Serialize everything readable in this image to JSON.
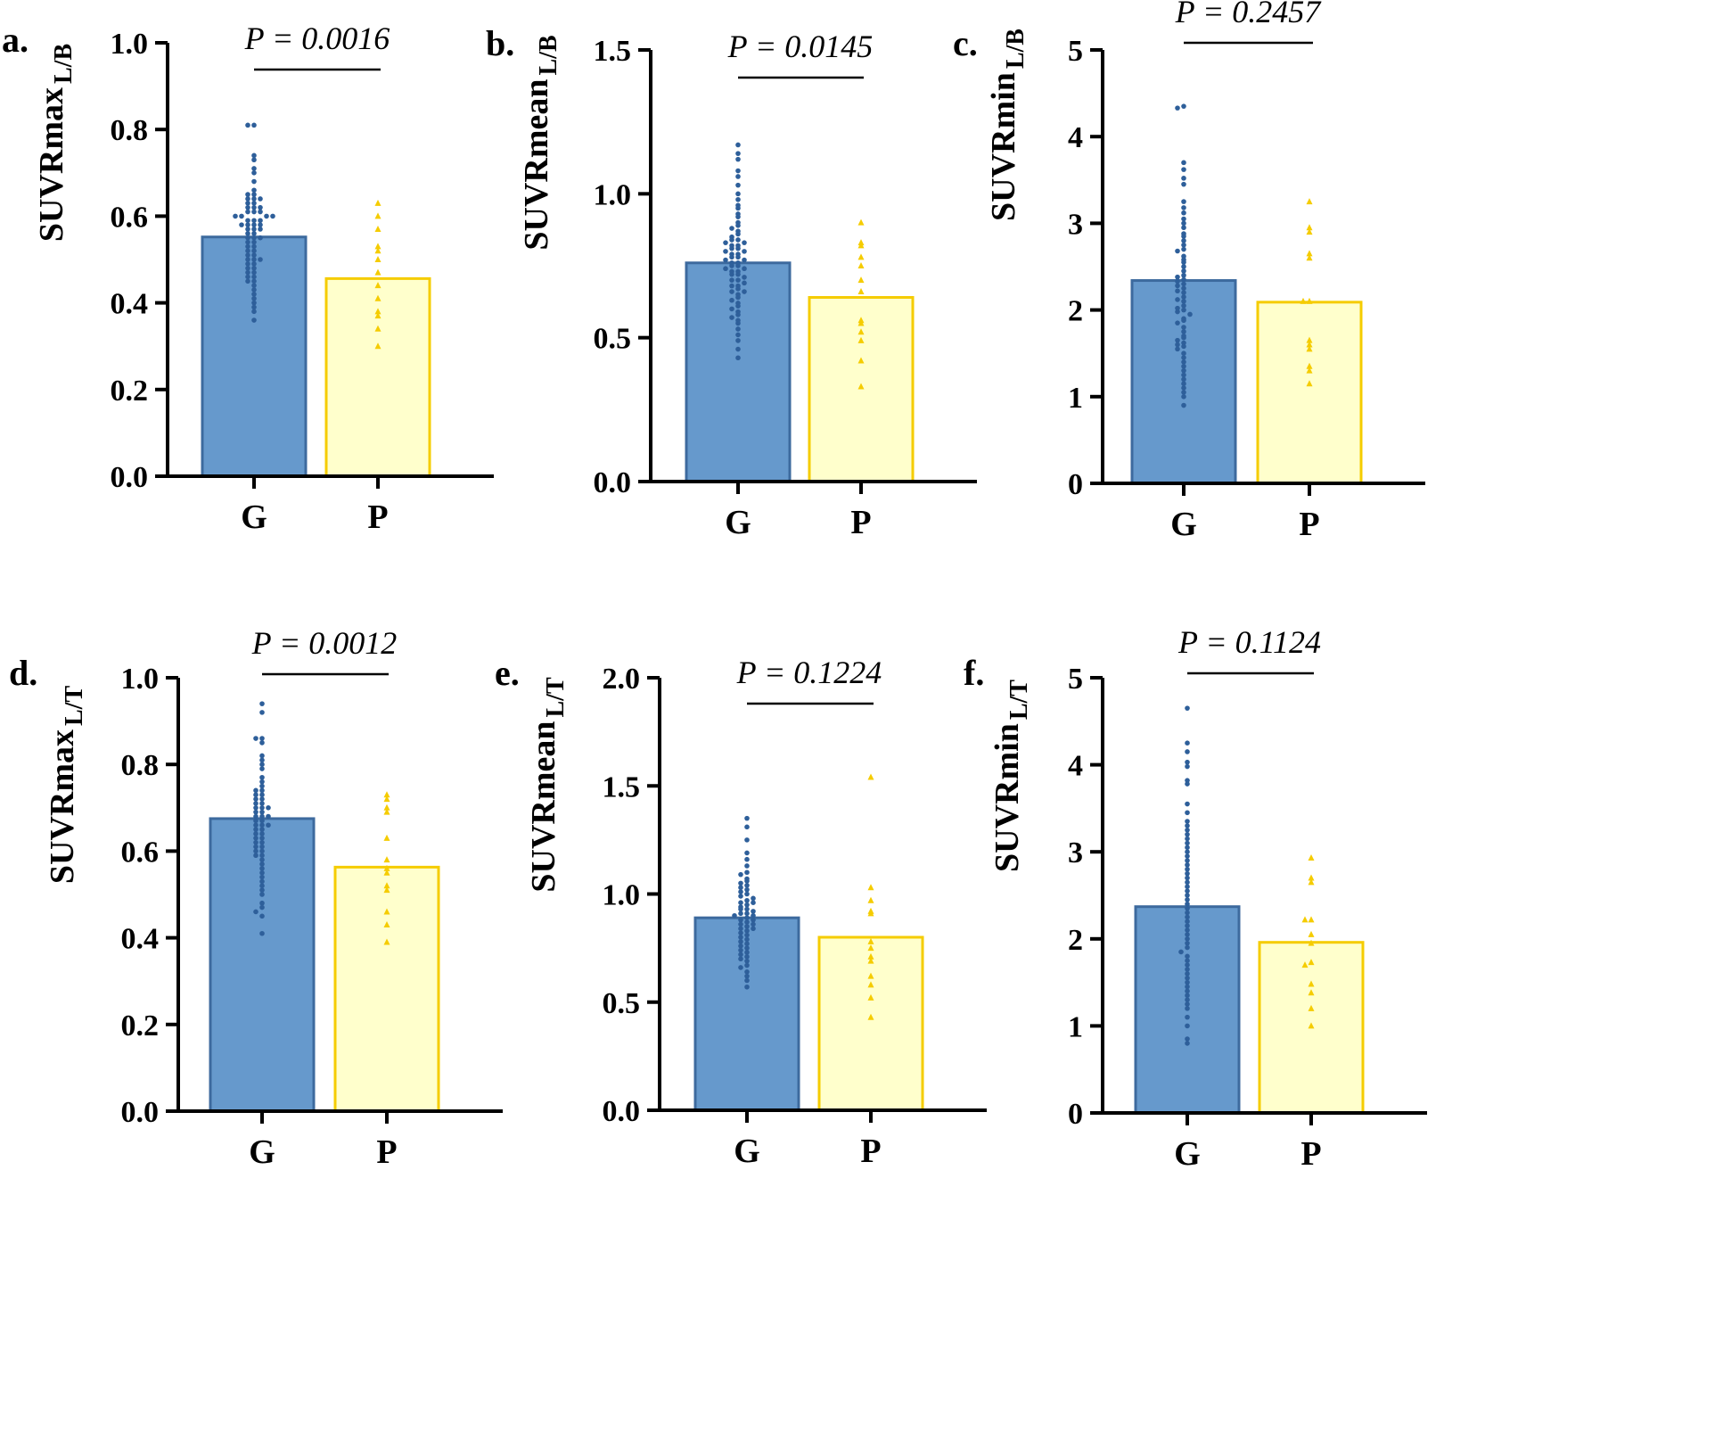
{
  "figure": {
    "colors": {
      "G_fill": "#6699cc",
      "G_stroke": "#3d6a9e",
      "G_point": "#2e5f9a",
      "P_fill": "#ffffcc",
      "P_stroke": "#f5cc00",
      "P_point": "#f5cc00",
      "axis": "#000000"
    }
  },
  "chart_data": [
    {
      "type": "bar",
      "panel_label": "a.",
      "ylabel": "SUVRmax",
      "ylabel_sub": "L/B",
      "categories": [
        "G",
        "P"
      ],
      "values": [
        0.552,
        0.456
      ],
      "ylim": [
        0,
        1.0
      ],
      "yticks": [
        0.0,
        0.2,
        0.4,
        0.6,
        0.8,
        1.0
      ],
      "ytick_labels": [
        "0.0",
        "0.2",
        "0.4",
        "0.6",
        "0.8",
        "1.0"
      ],
      "p_value": "P = 0.0016",
      "points": {
        "G": [
          0.81,
          0.81,
          0.74,
          0.73,
          0.71,
          0.7,
          0.68,
          0.66,
          0.65,
          0.65,
          0.64,
          0.64,
          0.64,
          0.63,
          0.63,
          0.62,
          0.62,
          0.62,
          0.61,
          0.61,
          0.61,
          0.6,
          0.6,
          0.6,
          0.6,
          0.59,
          0.59,
          0.59,
          0.58,
          0.58,
          0.58,
          0.58,
          0.57,
          0.57,
          0.57,
          0.56,
          0.56,
          0.55,
          0.55,
          0.55,
          0.54,
          0.54,
          0.53,
          0.53,
          0.52,
          0.52,
          0.51,
          0.51,
          0.5,
          0.5,
          0.5,
          0.49,
          0.49,
          0.48,
          0.48,
          0.47,
          0.47,
          0.46,
          0.46,
          0.45,
          0.45,
          0.44,
          0.43,
          0.42,
          0.41,
          0.4,
          0.39,
          0.38,
          0.36
        ],
        "P": [
          0.63,
          0.6,
          0.57,
          0.53,
          0.52,
          0.5,
          0.47,
          0.44,
          0.41,
          0.38,
          0.37,
          0.34,
          0.3
        ]
      }
    },
    {
      "type": "bar",
      "panel_label": "b.",
      "ylabel": "SUVRmean",
      "ylabel_sub": "L/B",
      "categories": [
        "G",
        "P"
      ],
      "values": [
        0.76,
        0.64
      ],
      "ylim": [
        0,
        1.5
      ],
      "yticks": [
        0.0,
        0.5,
        1.0,
        1.5
      ],
      "ytick_labels": [
        "0.0",
        "0.5",
        "1.0",
        "1.5"
      ],
      "p_value": "P = 0.0145",
      "points": {
        "G": [
          1.17,
          1.14,
          1.12,
          1.08,
          1.06,
          1.03,
          1.0,
          0.98,
          0.96,
          0.95,
          0.93,
          0.92,
          0.9,
          0.89,
          0.88,
          0.87,
          0.86,
          0.85,
          0.84,
          0.84,
          0.83,
          0.83,
          0.82,
          0.82,
          0.81,
          0.81,
          0.8,
          0.8,
          0.79,
          0.79,
          0.78,
          0.78,
          0.77,
          0.77,
          0.76,
          0.76,
          0.75,
          0.75,
          0.74,
          0.74,
          0.73,
          0.73,
          0.72,
          0.72,
          0.71,
          0.7,
          0.7,
          0.69,
          0.68,
          0.68,
          0.67,
          0.66,
          0.66,
          0.65,
          0.64,
          0.63,
          0.62,
          0.61,
          0.6,
          0.59,
          0.58,
          0.57,
          0.56,
          0.55,
          0.53,
          0.51,
          0.49,
          0.46,
          0.43
        ],
        "P": [
          0.9,
          0.83,
          0.82,
          0.78,
          0.75,
          0.7,
          0.66,
          0.56,
          0.55,
          0.52,
          0.49,
          0.42,
          0.33
        ]
      }
    },
    {
      "type": "bar",
      "panel_label": "c.",
      "ylabel": "SUVRmin",
      "ylabel_sub": "L/B",
      "categories": [
        "G",
        "P"
      ],
      "values": [
        2.34,
        2.09
      ],
      "ylim": [
        0,
        5
      ],
      "yticks": [
        0,
        1,
        2,
        3,
        4,
        5
      ],
      "ytick_labels": [
        "0",
        "1",
        "2",
        "3",
        "4",
        "5"
      ],
      "p_value": "P = 0.2457",
      "points": {
        "G": [
          4.35,
          4.33,
          3.7,
          3.62,
          3.52,
          3.45,
          3.25,
          3.18,
          3.12,
          3.05,
          3.0,
          2.95,
          2.88,
          2.85,
          2.8,
          2.75,
          2.7,
          2.68,
          2.62,
          2.58,
          2.55,
          2.5,
          2.45,
          2.4,
          2.38,
          2.35,
          2.33,
          2.3,
          2.28,
          2.25,
          2.22,
          2.2,
          2.15,
          2.12,
          2.1,
          2.05,
          2.02,
          2.0,
          1.98,
          1.95,
          1.9,
          1.88,
          1.85,
          1.8,
          1.75,
          1.7,
          1.68,
          1.65,
          1.62,
          1.6,
          1.58,
          1.55,
          1.5,
          1.45,
          1.4,
          1.35,
          1.3,
          1.25,
          1.2,
          1.15,
          1.1,
          1.05,
          1.0,
          0.9
        ],
        "P": [
          3.25,
          2.95,
          2.9,
          2.65,
          2.6,
          2.1,
          2.1,
          1.65,
          1.6,
          1.55,
          1.35,
          1.3,
          1.15
        ]
      }
    },
    {
      "type": "bar",
      "panel_label": "d.",
      "ylabel": "SUVRmax",
      "ylabel_sub": "L/T",
      "categories": [
        "G",
        "P"
      ],
      "values": [
        0.675,
        0.563
      ],
      "ylim": [
        0,
        1.0
      ],
      "yticks": [
        0.0,
        0.2,
        0.4,
        0.6,
        0.8,
        1.0
      ],
      "ytick_labels": [
        "0.0",
        "0.2",
        "0.4",
        "0.6",
        "0.8",
        "1.0"
      ],
      "p_value": "P = 0.0012",
      "points": {
        "G": [
          0.94,
          0.92,
          0.86,
          0.86,
          0.85,
          0.82,
          0.81,
          0.8,
          0.79,
          0.77,
          0.76,
          0.75,
          0.74,
          0.74,
          0.73,
          0.73,
          0.72,
          0.72,
          0.71,
          0.71,
          0.7,
          0.7,
          0.7,
          0.69,
          0.69,
          0.68,
          0.68,
          0.68,
          0.67,
          0.67,
          0.66,
          0.66,
          0.66,
          0.65,
          0.65,
          0.64,
          0.64,
          0.63,
          0.63,
          0.62,
          0.62,
          0.61,
          0.61,
          0.6,
          0.6,
          0.59,
          0.59,
          0.58,
          0.57,
          0.56,
          0.55,
          0.54,
          0.53,
          0.52,
          0.51,
          0.5,
          0.48,
          0.47,
          0.46,
          0.45,
          0.41
        ],
        "P": [
          0.73,
          0.72,
          0.7,
          0.69,
          0.63,
          0.58,
          0.56,
          0.55,
          0.52,
          0.51,
          0.46,
          0.43,
          0.39
        ]
      }
    },
    {
      "type": "bar",
      "panel_label": "e.",
      "ylabel": "SUVRmean",
      "ylabel_sub": "L/T",
      "categories": [
        "G",
        "P"
      ],
      "values": [
        0.89,
        0.8
      ],
      "ylim": [
        0,
        2.0
      ],
      "yticks": [
        0.0,
        0.5,
        1.0,
        1.5,
        2.0
      ],
      "ytick_labels": [
        "0.0",
        "0.5",
        "1.0",
        "1.5",
        "2.0"
      ],
      "p_value": "P = 0.1224",
      "points": {
        "G": [
          1.35,
          1.31,
          1.25,
          1.19,
          1.16,
          1.13,
          1.1,
          1.09,
          1.07,
          1.06,
          1.05,
          1.04,
          1.03,
          1.02,
          1.01,
          1.0,
          0.99,
          0.98,
          0.97,
          0.96,
          0.96,
          0.95,
          0.94,
          0.93,
          0.93,
          0.92,
          0.91,
          0.91,
          0.9,
          0.9,
          0.89,
          0.88,
          0.88,
          0.87,
          0.86,
          0.86,
          0.85,
          0.84,
          0.84,
          0.83,
          0.82,
          0.81,
          0.8,
          0.79,
          0.78,
          0.77,
          0.76,
          0.75,
          0.74,
          0.73,
          0.72,
          0.71,
          0.7,
          0.69,
          0.67,
          0.66,
          0.64,
          0.62,
          0.6,
          0.57
        ],
        "P": [
          1.54,
          1.03,
          0.97,
          0.92,
          0.91,
          0.78,
          0.75,
          0.71,
          0.69,
          0.62,
          0.58,
          0.52,
          0.43
        ]
      }
    },
    {
      "type": "bar",
      "panel_label": "f.",
      "ylabel": "SUVRmin",
      "ylabel_sub": "L/T",
      "categories": [
        "G",
        "P"
      ],
      "values": [
        2.37,
        1.96
      ],
      "ylim": [
        0,
        5
      ],
      "yticks": [
        0,
        1,
        2,
        3,
        4,
        5
      ],
      "ytick_labels": [
        "0",
        "1",
        "2",
        "3",
        "4",
        "5"
      ],
      "p_value": "P = 0.1124",
      "points": {
        "G": [
          4.65,
          4.25,
          4.15,
          4.03,
          3.98,
          3.82,
          3.78,
          3.55,
          3.45,
          3.35,
          3.3,
          3.25,
          3.2,
          3.15,
          3.1,
          3.05,
          3.0,
          2.95,
          2.9,
          2.85,
          2.8,
          2.75,
          2.7,
          2.65,
          2.6,
          2.55,
          2.5,
          2.45,
          2.4,
          2.35,
          2.3,
          2.25,
          2.2,
          2.15,
          2.1,
          2.05,
          2.0,
          1.95,
          1.9,
          1.85,
          1.8,
          1.75,
          1.7,
          1.65,
          1.6,
          1.55,
          1.5,
          1.45,
          1.4,
          1.35,
          1.3,
          1.25,
          1.2,
          1.1,
          1.0,
          0.85,
          0.8
        ],
        "P": [
          2.93,
          2.7,
          2.65,
          2.22,
          2.22,
          2.05,
          1.95,
          1.73,
          1.7,
          1.48,
          1.38,
          1.2,
          1.0
        ]
      }
    }
  ]
}
